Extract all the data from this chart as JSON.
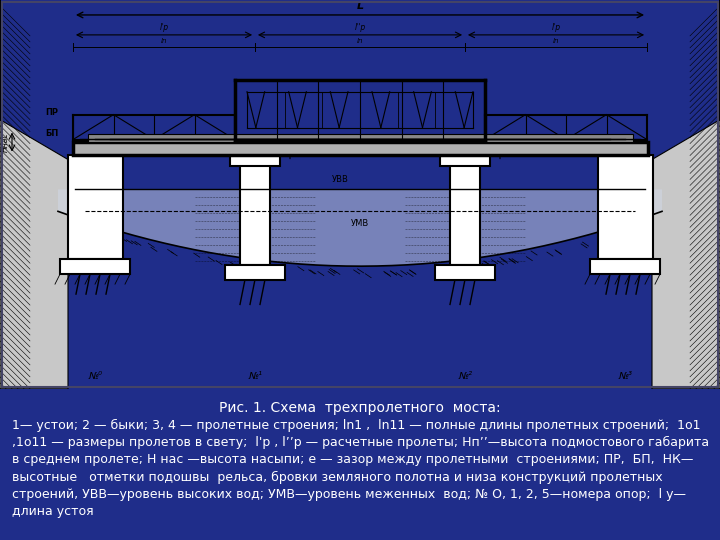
{
  "bg_color": "#1f2d8a",
  "diagram_bg": "#e8e8e8",
  "title_line": "Рис. 1. Схема  трехпролетного  моста:",
  "caption_lines": [
    "1— устои; 2 — быки; 3, 4 — пролетные строения; ln1 ,  ln11 — полные длины пролетных строений;  1о1",
    ",1о11 — размеры пролетов в свету;  l'р , l’’р — расчетные пролеты; Нп’’—высота подмостового габарита",
    "в среднем пролете; Н нас —высота насыпи; е — зазор между пролетными  строениями; ПР,  БП,  НК—",
    "высотные   отметки подошвы  рельса, бровки земляного полотна и низа конструкций пролетных",
    "строений, УВВ—уровень высоких вод; УМВ—уровень меженных  вод; № О, 1, 2, 5—номера опор;  l у—",
    "длина устоя"
  ],
  "text_color": "#ffffff",
  "title_fontsize": 10,
  "caption_fontsize": 9
}
